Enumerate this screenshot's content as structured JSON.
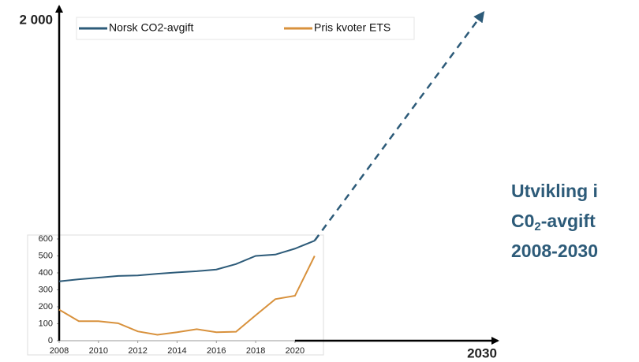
{
  "chart_data": {
    "type": "line",
    "x": [
      2008,
      2009,
      2010,
      2011,
      2012,
      2013,
      2014,
      2015,
      2016,
      2017,
      2018,
      2019,
      2020,
      2021
    ],
    "series": [
      {
        "name": "Norsk CO2-avgift",
        "color": "#2d5b79",
        "values": [
          350,
          362,
          372,
          382,
          385,
          395,
          403,
          410,
          420,
          452,
          500,
          508,
          543,
          590
        ]
      },
      {
        "name": "Pris kvoter ETS",
        "color": "#d8913c",
        "values": [
          183,
          115,
          115,
          103,
          55,
          35,
          50,
          68,
          50,
          53,
          150,
          245,
          265,
          500
        ]
      }
    ],
    "projection": {
      "x": [
        2021,
        2030
      ],
      "values": [
        590,
        2000
      ],
      "color": "#2d5b79"
    },
    "xlim": [
      2008,
      2030
    ],
    "ylim": [
      0,
      2000
    ],
    "xticks": [
      2008,
      2010,
      2012,
      2014,
      2016,
      2018,
      2020
    ],
    "yticks": [
      0,
      100,
      200,
      300,
      400,
      500,
      600
    ],
    "extended_xticks": [
      2030
    ],
    "extended_yticks": [
      {
        "value": 2000,
        "label": "2 000"
      }
    ],
    "annotation": {
      "line1": "Utvikling i",
      "line2a": "C0",
      "line2sub": "2",
      "line2b": "-avgift",
      "line3": "2008-2030"
    }
  }
}
